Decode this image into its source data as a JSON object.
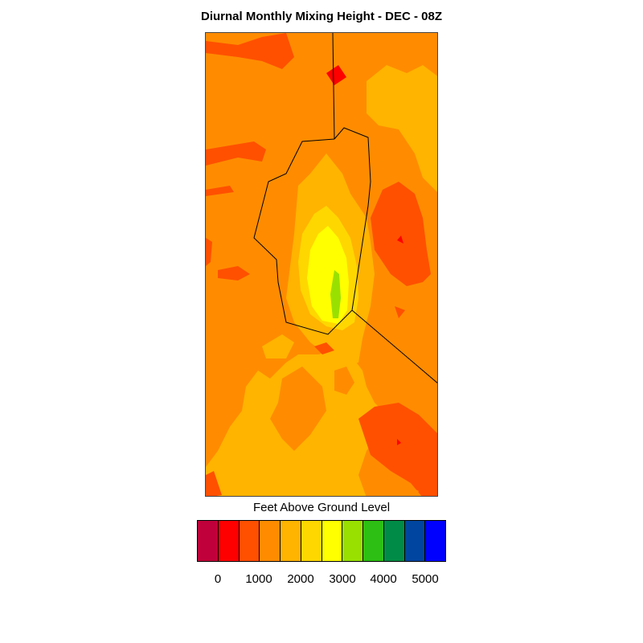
{
  "title": "Diurnal Monthly Mixing Height - DEC - 08Z",
  "legend": {
    "title": "Feet Above Ground Level",
    "colors": [
      "#c0003a",
      "#ff0000",
      "#ff5000",
      "#ff8c00",
      "#ffb400",
      "#ffd700",
      "#ffff00",
      "#99e000",
      "#2dbf14",
      "#008c46",
      "#0046a0",
      "#0000ff"
    ],
    "ticks": [
      "0",
      "1000",
      "2000",
      "3000",
      "4000",
      "5000"
    ]
  },
  "map": {
    "background_level_color": "#ff8c00",
    "levels": {
      "red": "#ff5000",
      "darkred": "#ff0000",
      "orange": "#ff8c00",
      "amber": "#ffb400",
      "gold": "#ffd700",
      "yellow": "#ffff00",
      "green": "#99e000"
    }
  }
}
